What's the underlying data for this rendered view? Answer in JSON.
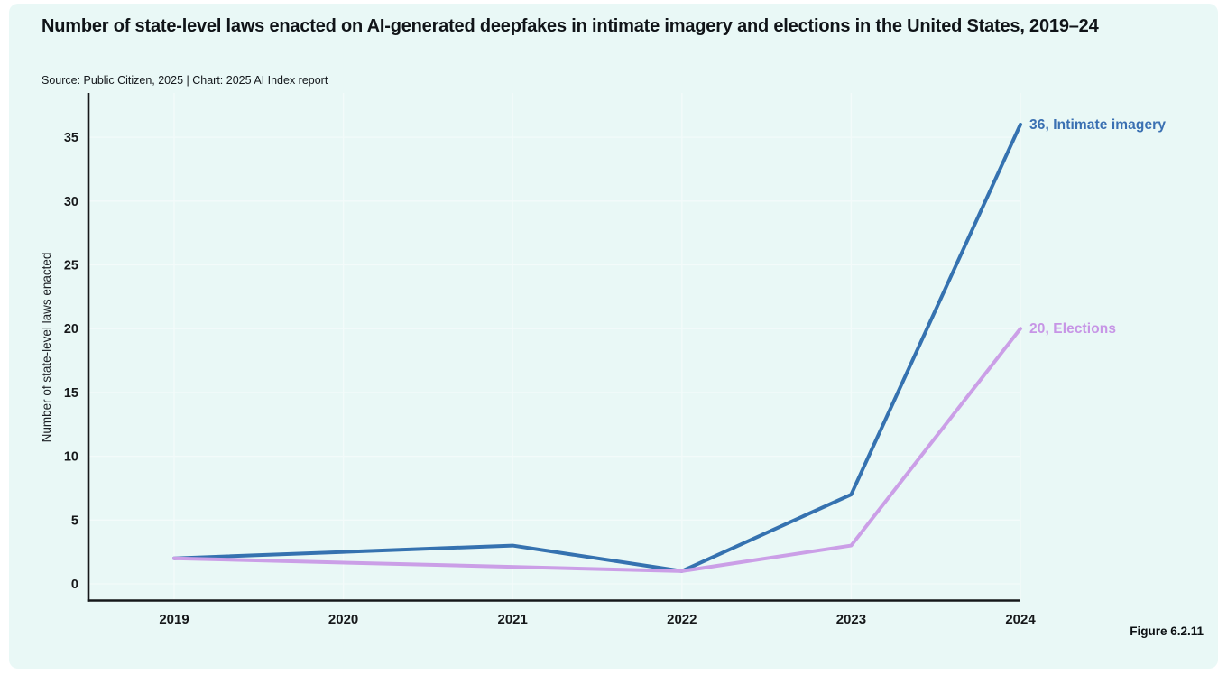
{
  "page": {
    "title": "Number of state-level laws enacted on AI-generated deepfakes in intimate imagery and elections in the United States, 2019–24",
    "source": "Source: Public Citizen, 2025 | Chart: 2025 AI Index report",
    "figure_label": "Figure 6.2.11",
    "panel_background": "#e9f8f6",
    "axis_color": "#16181a",
    "gridline_color": "#f3fbfa"
  },
  "chart_data": {
    "type": "line",
    "title": "Number of state-level laws enacted on AI-generated deepfakes in intimate imagery and elections in the United States, 2019–24",
    "x": [
      2019,
      2020,
      2021,
      2022,
      2023,
      2024
    ],
    "series": [
      {
        "name": "Intimate imagery",
        "values": [
          2,
          null,
          3,
          1,
          7,
          36
        ],
        "color": "#3572b0",
        "label_color": "#3a70b2",
        "end_label": "36, Intimate imagery"
      },
      {
        "name": "Elections",
        "values": [
          2,
          null,
          null,
          1,
          3,
          20
        ],
        "color": "#cb9fe7",
        "label_color": "#c795e6",
        "end_label": "20, Elections"
      }
    ],
    "xlabel": "",
    "ylabel": "Number of state-level laws enacted",
    "ylim": [
      0,
      37
    ],
    "yticks": [
      0,
      5,
      10,
      15,
      20,
      25,
      30,
      35
    ],
    "grid": true,
    "legend_position": "end-of-line labels, right side",
    "notes": "null values are years with no plotted point; lines connect straight across them"
  }
}
